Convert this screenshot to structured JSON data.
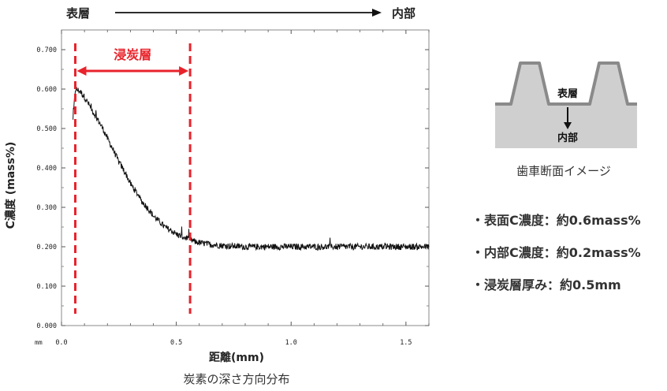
{
  "chart_data": {
    "type": "line",
    "title": "",
    "xlabel": "距離(mm)",
    "ylabel": "C濃度 (mass%)",
    "x_unit_label": "mm",
    "xlim": [
      0.0,
      1.6
    ],
    "ylim": [
      0.0,
      0.75
    ],
    "x_ticks": [
      "0.0",
      "0.5",
      "1.0",
      "1.5"
    ],
    "y_ticks": [
      "0.000",
      "0.100",
      "0.200",
      "0.300",
      "0.400",
      "0.500",
      "0.600",
      "0.700"
    ],
    "grid": false,
    "direction_labels": {
      "start": "表層",
      "end": "内部"
    },
    "carburized_layer": {
      "label": "浸炭層",
      "x_start": 0.06,
      "x_end": 0.56
    },
    "series": [
      {
        "name": "",
        "color": "#111111",
        "x": [
          0.05,
          0.06,
          0.08,
          0.1,
          0.12,
          0.15,
          0.18,
          0.2,
          0.23,
          0.25,
          0.28,
          0.3,
          0.33,
          0.35,
          0.38,
          0.4,
          0.43,
          0.45,
          0.48,
          0.5,
          0.53,
          0.55,
          0.58,
          0.6,
          0.65,
          0.7,
          0.8,
          0.9,
          1.0,
          1.1,
          1.2,
          1.3,
          1.4,
          1.5,
          1.55,
          1.6
        ],
        "y": [
          0.52,
          0.6,
          0.595,
          0.58,
          0.56,
          0.53,
          0.5,
          0.475,
          0.44,
          0.415,
          0.385,
          0.36,
          0.335,
          0.315,
          0.295,
          0.278,
          0.262,
          0.25,
          0.24,
          0.232,
          0.225,
          0.22,
          0.213,
          0.21,
          0.206,
          0.203,
          0.2,
          0.2,
          0.2,
          0.2,
          0.2,
          0.2,
          0.2,
          0.2,
          0.2,
          0.2
        ]
      }
    ]
  },
  "chart_caption": "炭素の深さ方向分布",
  "diagram": {
    "surface_label": "表層",
    "interior_label": "内部",
    "caption": "歯車断面イメージ"
  },
  "summary": [
    "・表面C濃度：約0.6mass%",
    "・内部C濃度：約0.2mass%",
    "・浸炭層厚み：約0.5mm"
  ],
  "colors": {
    "accent_red": "#e8232b",
    "gear_fill": "#cfcfcf",
    "gear_edge": "#8a8a8a",
    "line": "#111111"
  }
}
